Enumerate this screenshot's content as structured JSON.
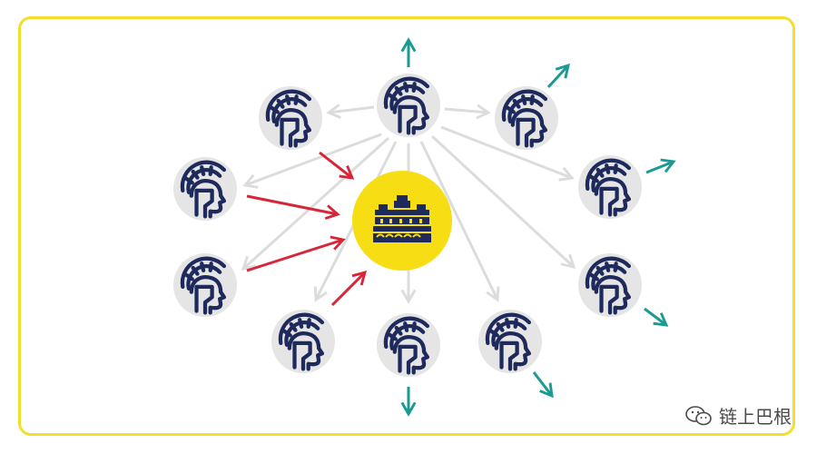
{
  "watermark": {
    "text": "链上巴根"
  },
  "colors": {
    "frame": "#f2de2c",
    "node_fill": "#e5e5e5",
    "helmet": "#1f2a5c",
    "center_fill": "#f7dd13",
    "center_icon": "#1f2a5c",
    "gray_arrow": "#dcdcdc",
    "red_arrow": "#d72638",
    "teal_arrow": "#1a9a93"
  },
  "icons": {
    "node": "roman-helmet-icon",
    "center": "temple-building-icon",
    "watermark": "wechat-icon"
  }
}
